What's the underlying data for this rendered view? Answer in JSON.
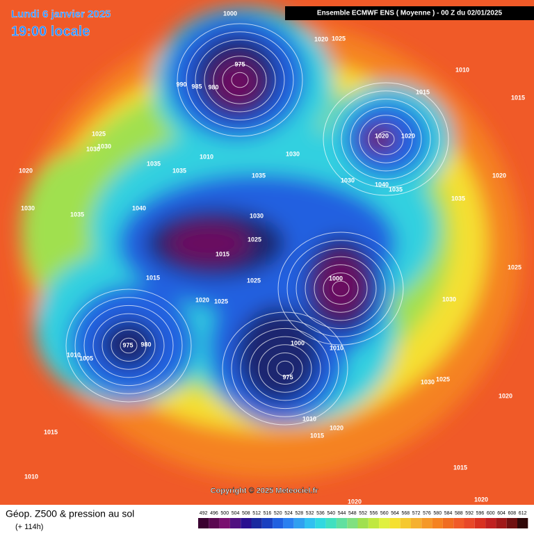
{
  "header": {
    "date": "Lundi 6 janvier 2025",
    "local_time": "19:00 locale",
    "model": "Ensemble ECMWF ENS  ( Moyenne )  -  00 Z du 02/01/2025"
  },
  "footer": {
    "title": "Géop. Z500 & pression au sol",
    "lead_time": "(+ 114h)",
    "copyright": "Copyright © 2025 Meteociel.fr"
  },
  "color_scale": {
    "labels": [
      492,
      496,
      500,
      504,
      508,
      512,
      516,
      520,
      524,
      528,
      532,
      536,
      540,
      544,
      548,
      552,
      556,
      560,
      564,
      568,
      572,
      576,
      580,
      584,
      588,
      592,
      596,
      600,
      604,
      608,
      612
    ]
  },
  "isobar_labels": [
    "975",
    "990",
    "985",
    "980",
    "1000",
    "1020",
    "1025",
    "1010",
    "1015",
    "1015",
    "1020",
    "1020",
    "1025",
    "1030",
    "1030",
    "1020",
    "1035",
    "1035",
    "1010",
    "1030",
    "1035",
    "1030",
    "1040",
    "1035",
    "1035",
    "1020",
    "1030",
    "1035",
    "1040",
    "1030",
    "1025",
    "1015",
    "1000",
    "1030",
    "1015",
    "1020",
    "1025",
    "1025",
    "975",
    "980",
    "1005",
    "1010",
    "1000",
    "975",
    "1010",
    "1030",
    "1025",
    "1020",
    "1015",
    "1010",
    "1015",
    "1020",
    "1010",
    "1015",
    "1020",
    "1020",
    "1025"
  ]
}
